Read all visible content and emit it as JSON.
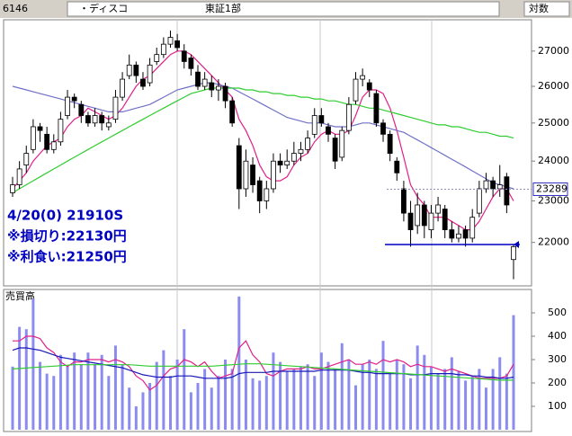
{
  "header": {
    "code": "6146",
    "name": "・ディスコ",
    "market": "東証1部",
    "scale_mode": "対数"
  },
  "chart_data": [
    {
      "type": "candlestick",
      "log_scale": true,
      "ylim": [
        21000,
        27920
      ],
      "yticks": [
        22000,
        23000,
        24000,
        25000,
        26000,
        27000
      ],
      "up_color": "#ffffff",
      "down_color": "#000000",
      "open": [
        23200,
        23400,
        23900,
        24300,
        24900,
        24700,
        24300,
        24500,
        25200,
        25700,
        25500,
        25200,
        25000,
        25200,
        24900,
        25100,
        25700,
        26300,
        26600,
        26200,
        26100,
        26700,
        26900,
        27200,
        27300,
        27000,
        26800,
        26400,
        26000,
        26100,
        25900,
        26000,
        25600,
        24400,
        23300,
        23900,
        23500,
        23000,
        23300,
        24000,
        23900,
        24000,
        24200,
        24300,
        24700,
        25200,
        24900,
        24600,
        24100,
        24800,
        25600,
        26200,
        26100,
        25800,
        25000,
        24700,
        24000,
        23300,
        22700,
        22400,
        22900,
        22300,
        22700,
        22800,
        22300,
        22100,
        22300,
        22100,
        22700,
        23300,
        23500,
        23300,
        23600,
        21600
      ],
      "high": [
        23600,
        24000,
        24400,
        25100,
        25000,
        24900,
        24700,
        25300,
        25900,
        25800,
        25600,
        25300,
        25400,
        25300,
        25200,
        25900,
        26400,
        26900,
        26700,
        26400,
        26800,
        27100,
        27400,
        27600,
        27500,
        27200,
        26900,
        26600,
        26400,
        26300,
        26200,
        26100,
        25700,
        24600,
        24300,
        24100,
        23600,
        23500,
        24200,
        24200,
        24300,
        24500,
        24500,
        24800,
        25400,
        25400,
        25000,
        24700,
        24900,
        25700,
        26400,
        26500,
        26200,
        25900,
        25100,
        24800,
        24100,
        23500,
        23000,
        23200,
        23000,
        22900,
        23100,
        22900,
        22500,
        22400,
        22400,
        22800,
        23500,
        23700,
        23600,
        23900,
        23700,
        21950
      ],
      "low": [
        23100,
        23300,
        23700,
        24200,
        24500,
        24200,
        24200,
        24400,
        25100,
        25400,
        25000,
        24900,
        24900,
        24800,
        24800,
        25000,
        25600,
        26200,
        26100,
        25900,
        26000,
        26600,
        26800,
        27100,
        27000,
        26500,
        26300,
        25900,
        25900,
        25700,
        25600,
        25400,
        24900,
        22800,
        23100,
        23200,
        22700,
        22800,
        23200,
        23700,
        23800,
        23900,
        24000,
        24200,
        24600,
        24900,
        24500,
        23800,
        24000,
        24700,
        25500,
        26000,
        25700,
        24900,
        24500,
        24000,
        23500,
        22500,
        21900,
        22200,
        22100,
        22100,
        22500,
        22100,
        22000,
        22000,
        21900,
        22000,
        22600,
        23200,
        23100,
        23100,
        22700,
        21150
      ],
      "close": [
        23400,
        23800,
        24200,
        24900,
        24800,
        24300,
        24500,
        25100,
        25700,
        25600,
        25200,
        25000,
        25200,
        25000,
        25000,
        25700,
        26200,
        26600,
        26300,
        26000,
        26600,
        26900,
        27200,
        27400,
        27100,
        26700,
        26500,
        26000,
        26200,
        25900,
        26000,
        25600,
        25000,
        23300,
        24000,
        23400,
        23000,
        23300,
        24000,
        23900,
        24000,
        24200,
        24300,
        24600,
        25200,
        25000,
        24700,
        24000,
        24800,
        25500,
        26200,
        26300,
        25900,
        25000,
        24700,
        24200,
        23700,
        22700,
        22300,
        22900,
        22400,
        22700,
        22900,
        22300,
        22100,
        22200,
        22100,
        22600,
        23300,
        23500,
        23300,
        23400,
        22900,
        21900
      ],
      "series": [
        {
          "color": "#e0208a",
          "values": [
            23300,
            23500,
            23700,
            24000,
            24200,
            24400,
            24500,
            24600,
            24900,
            25100,
            25200,
            25400,
            25300,
            25200,
            25100,
            25200,
            25400,
            25700,
            26000,
            26200,
            26300,
            26500,
            26700,
            26900,
            27000,
            27000,
            26900,
            26700,
            26500,
            26300,
            26100,
            25900,
            25700,
            25100,
            24800,
            24400,
            23900,
            23600,
            23500,
            23500,
            23600,
            23900,
            24100,
            24200,
            24500,
            24700,
            24800,
            24700,
            24700,
            24800,
            25200,
            25700,
            25900,
            25900,
            25800,
            25400,
            24800,
            24100,
            23400,
            23100,
            22900,
            22600,
            22600,
            22600,
            22500,
            22400,
            22300,
            22300,
            22500,
            22800,
            23100,
            23300,
            23300,
            23000
          ]
        },
        {
          "color": "#7070c8",
          "values": [
            26000,
            25950,
            25900,
            25850,
            25800,
            25750,
            25700,
            25650,
            25600,
            25550,
            25500,
            25450,
            25400,
            25350,
            25300,
            25300,
            25300,
            25350,
            25400,
            25450,
            25500,
            25600,
            25700,
            25800,
            25900,
            25950,
            26000,
            26050,
            26100,
            26100,
            26050,
            26000,
            25950,
            25850,
            25750,
            25650,
            25550,
            25450,
            25350,
            25250,
            25150,
            25100,
            25050,
            25000,
            25000,
            25000,
            24950,
            24900,
            24900,
            24900,
            24950,
            25000,
            25000,
            24950,
            24900,
            24850,
            24800,
            24750,
            24650,
            24550,
            24450,
            24350,
            24250,
            24150,
            24050,
            23950,
            23850,
            23750,
            23650,
            23550,
            23450,
            23400,
            23350,
            23300
          ]
        },
        {
          "color": "#30cc30",
          "values": [
            23200,
            23300,
            23400,
            23500,
            23600,
            23700,
            23800,
            23900,
            24000,
            24100,
            24200,
            24300,
            24400,
            24500,
            24600,
            24700,
            24800,
            24900,
            25000,
            25100,
            25200,
            25300,
            25400,
            25500,
            25600,
            25700,
            25800,
            25850,
            25900,
            25950,
            25950,
            25950,
            25950,
            25950,
            25900,
            25900,
            25850,
            25850,
            25800,
            25800,
            25750,
            25750,
            25700,
            25700,
            25650,
            25650,
            25600,
            25600,
            25550,
            25500,
            25500,
            25450,
            25400,
            25400,
            25350,
            25300,
            25250,
            25200,
            25150,
            25100,
            25050,
            25000,
            24950,
            24950,
            24900,
            24900,
            24850,
            24800,
            24750,
            24750,
            24700,
            24650,
            24650,
            24600
          ]
        }
      ],
      "last_price": 23289,
      "support_level": 21950,
      "support_color": "#0000c0",
      "annotations": [
        "4/20(0) 21910S",
        "※損切り:22130円",
        "※利食い:21250円"
      ]
    },
    {
      "type": "bar",
      "title": "売買高",
      "color": "#8c8cf0",
      "ylim": [
        0,
        600
      ],
      "yticks": [
        100,
        200,
        300,
        400,
        500
      ],
      "values": [
        270,
        440,
        430,
        560,
        290,
        240,
        230,
        320,
        270,
        330,
        280,
        330,
        280,
        320,
        230,
        360,
        280,
        180,
        100,
        160,
        200,
        290,
        340,
        230,
        300,
        430,
        160,
        200,
        260,
        180,
        230,
        300,
        260,
        570,
        300,
        220,
        210,
        230,
        330,
        290,
        250,
        260,
        270,
        280,
        230,
        330,
        290,
        260,
        370,
        300,
        190,
        280,
        300,
        260,
        380,
        240,
        300,
        280,
        220,
        360,
        320,
        270,
        240,
        260,
        310,
        250,
        210,
        230,
        260,
        180,
        260,
        310,
        240,
        490
      ],
      "series": [
        {
          "color": "#e0208a",
          "values": [
            380,
            380,
            400,
            400,
            390,
            350,
            330,
            290,
            270,
            290,
            290,
            300,
            300,
            300,
            290,
            300,
            290,
            270,
            230,
            210,
            170,
            190,
            230,
            260,
            270,
            300,
            290,
            270,
            290,
            250,
            220,
            230,
            240,
            350,
            380,
            320,
            290,
            240,
            230,
            250,
            260,
            260,
            260,
            270,
            260,
            260,
            270,
            280,
            290,
            300,
            280,
            280,
            290,
            280,
            300,
            290,
            300,
            290,
            270,
            280,
            270,
            270,
            260,
            250,
            260,
            250,
            240,
            230,
            220,
            220,
            220,
            220,
            230,
            280
          ]
        },
        {
          "color": "#1818b8",
          "values": [
            340,
            350,
            350,
            345,
            340,
            330,
            320,
            310,
            305,
            300,
            295,
            290,
            285,
            280,
            275,
            270,
            265,
            255,
            245,
            235,
            230,
            225,
            225,
            225,
            230,
            230,
            230,
            225,
            220,
            220,
            220,
            220,
            225,
            240,
            245,
            245,
            245,
            245,
            250,
            250,
            250,
            250,
            250,
            250,
            250,
            255,
            255,
            255,
            255,
            255,
            250,
            245,
            245,
            240,
            240,
            240,
            240,
            240,
            235,
            235,
            235,
            240,
            240,
            240,
            240,
            235,
            235,
            230,
            230,
            225,
            225,
            220,
            220,
            225
          ]
        },
        {
          "color": "#30cc30",
          "values": [
            260,
            262,
            264,
            266,
            268,
            270,
            272,
            274,
            276,
            278,
            278,
            278,
            278,
            278,
            278,
            278,
            278,
            278,
            276,
            274,
            272,
            272,
            272,
            272,
            272,
            272,
            272,
            272,
            272,
            272,
            274,
            276,
            278,
            280,
            282,
            282,
            282,
            280,
            278,
            276,
            274,
            272,
            270,
            268,
            266,
            264,
            262,
            260,
            258,
            256,
            254,
            252,
            250,
            248,
            246,
            244,
            242,
            240,
            238,
            236,
            234,
            232,
            230,
            228,
            226,
            224,
            222,
            220,
            218,
            216,
            214,
            212,
            212,
            212
          ]
        }
      ]
    }
  ]
}
